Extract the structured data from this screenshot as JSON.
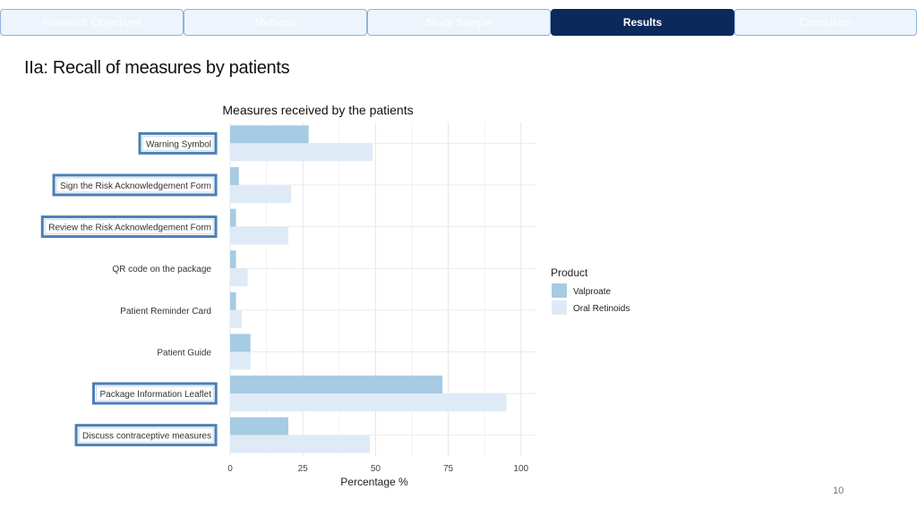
{
  "tabs": [
    {
      "label": "Research Objectives",
      "active": false
    },
    {
      "label": "Methods",
      "active": false
    },
    {
      "label": "Study Sample",
      "active": false
    },
    {
      "label": "Results",
      "active": true
    },
    {
      "label": "Conclusion",
      "active": false
    }
  ],
  "slide": {
    "title": "IIa: Recall of measures by patients",
    "page_number": "10"
  },
  "colors": {
    "valproate": "#a6cbe3",
    "oral_retinoids": "#deebf7",
    "highlight_border": "#4a7fb5",
    "active_tab": "#0b2a5b"
  },
  "chart_data": {
    "type": "bar",
    "orientation": "horizontal",
    "title": "Measures received by the patients",
    "xlabel": "Percentage %",
    "ylabel": "",
    "xlim": [
      0,
      105
    ],
    "xticks": [
      0,
      25,
      50,
      75,
      100
    ],
    "grid": true,
    "categories": [
      "Warning Symbol",
      "Sign the Risk Acknowledgement Form",
      "Review the Risk Acknowledgement Form",
      "QR code on the package",
      "Patient Reminder Card",
      "Patient Guide",
      "Package Information Leaflet",
      "Discuss contraceptive measures"
    ],
    "highlighted": [
      true,
      true,
      true,
      false,
      false,
      false,
      true,
      true
    ],
    "series": [
      {
        "name": "Valproate",
        "color": "#a6cbe3",
        "values": [
          27,
          3,
          2,
          2,
          2,
          7,
          73,
          20
        ]
      },
      {
        "name": "Oral Retinoids",
        "color": "#deebf7",
        "values": [
          49,
          21,
          20,
          6,
          4,
          7,
          95,
          48
        ]
      }
    ],
    "legend": {
      "title": "Product",
      "position": "right"
    }
  }
}
